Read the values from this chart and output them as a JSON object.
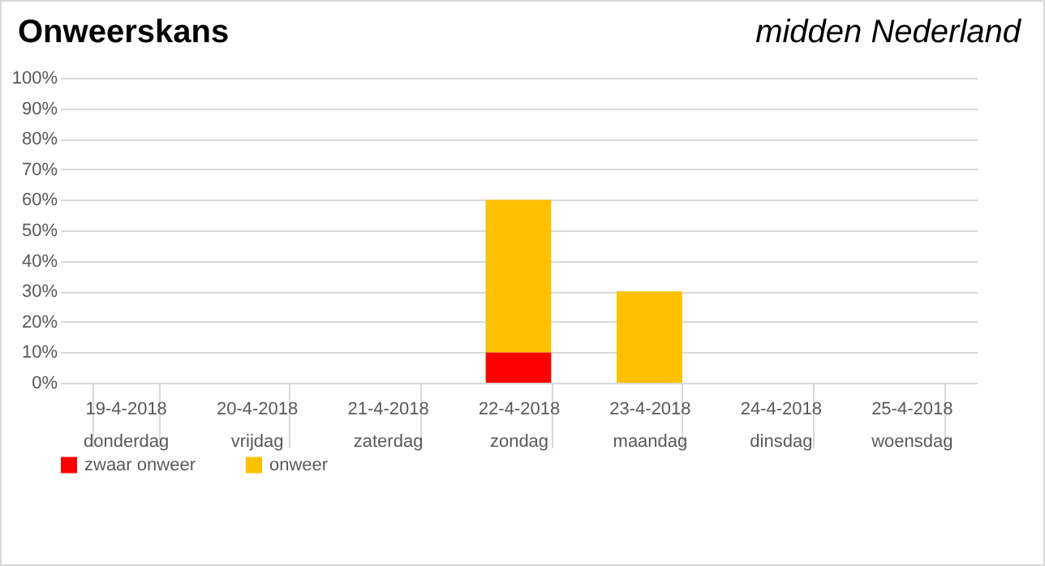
{
  "chart_data": {
    "type": "bar",
    "title": "Onweerskans",
    "subtitle": "midden Nederland",
    "stacked": true,
    "legend": "bottom",
    "grid": "y",
    "categories": [
      "19-4-2018\ndonderdag",
      "20-4-2018\nvrijdag",
      "21-4-2018\nzaterdag",
      "22-4-2018\nzondag",
      "23-4-2018\nmaandag",
      "24-4-2018\ndinsdag",
      "25-4-2018\nwoensdag"
    ],
    "series": [
      {
        "name": "zwaar onweer",
        "color": "#ff0000",
        "values": [
          0,
          0,
          0,
          10,
          0,
          0,
          0
        ]
      },
      {
        "name": "onweer",
        "color": "#ffc000",
        "values": [
          0,
          0,
          0,
          50,
          30,
          0,
          0
        ]
      }
    ],
    "ylim": [
      0,
      100
    ],
    "yticks": [
      {
        "value": 0,
        "label": "0%"
      },
      {
        "value": 10,
        "label": "10%"
      },
      {
        "value": 20,
        "label": "20%"
      },
      {
        "value": 30,
        "label": "30%"
      },
      {
        "value": 40,
        "label": "40%"
      },
      {
        "value": 50,
        "label": "50%"
      },
      {
        "value": 60,
        "label": "60%"
      },
      {
        "value": 70,
        "label": "70%"
      },
      {
        "value": 80,
        "label": "80%"
      },
      {
        "value": 90,
        "label": "90%"
      },
      {
        "value": 100,
        "label": "100%"
      }
    ]
  }
}
